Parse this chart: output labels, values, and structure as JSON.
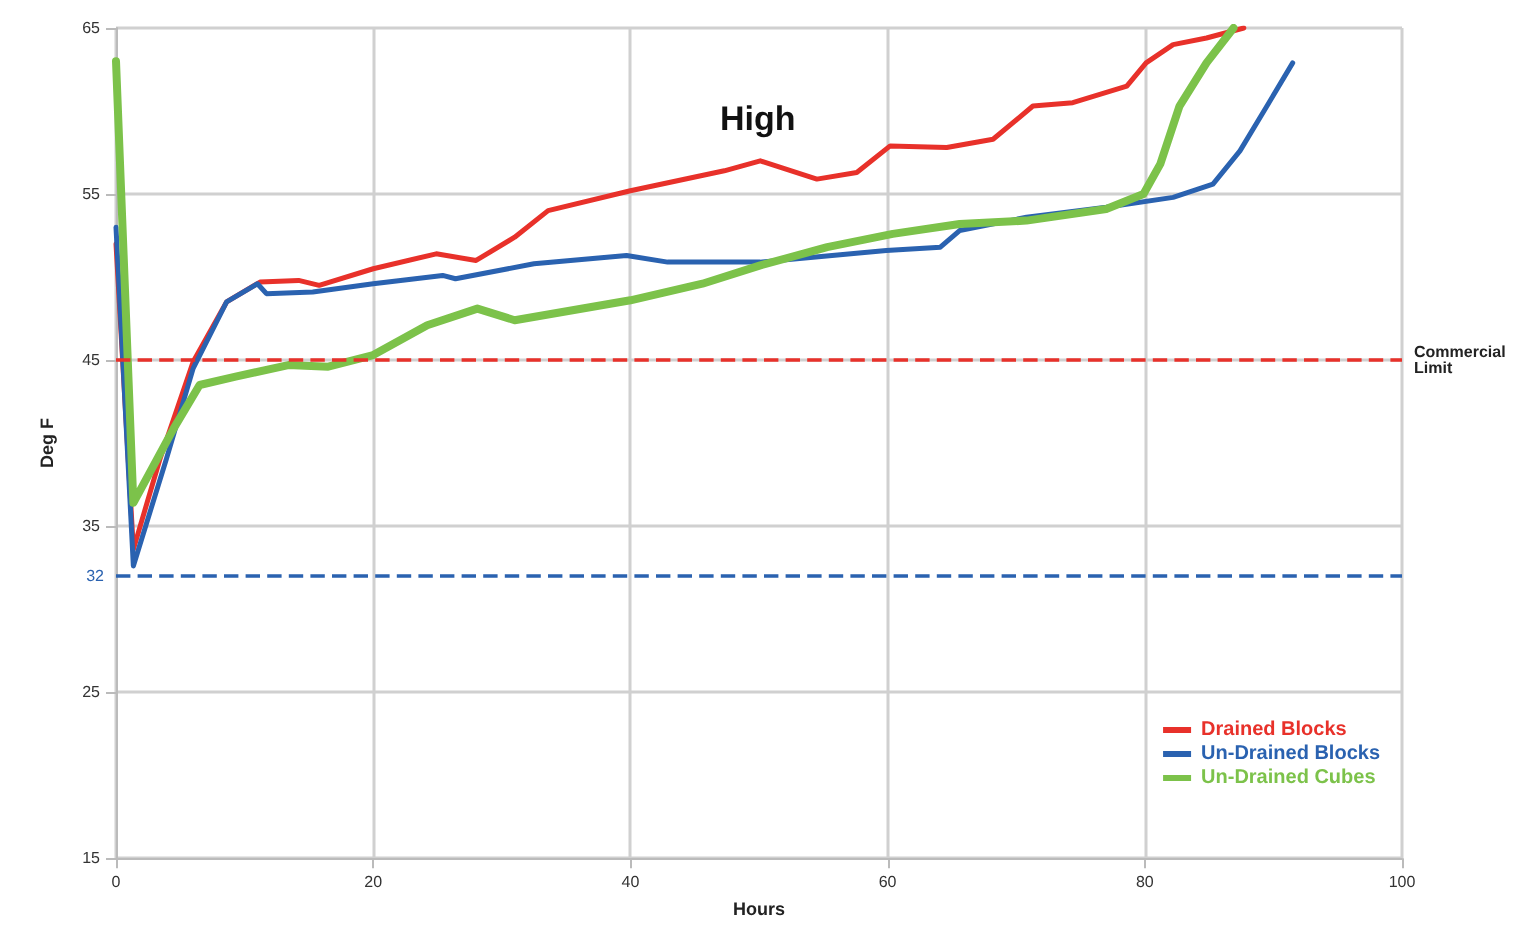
{
  "chart_data": {
    "type": "line",
    "title": "High",
    "xlabel": "Hours",
    "ylabel": "Deg F",
    "xlim": [
      0,
      100
    ],
    "xticks": [
      0,
      20,
      40,
      60,
      80,
      100
    ],
    "ylim": [
      15,
      65
    ],
    "yticks": [
      15,
      25,
      35,
      45,
      55,
      65
    ],
    "grid": true,
    "legend": "bottom right",
    "marker": "none",
    "line_style": "solid",
    "series": [
      {
        "name": "Drained Blocks",
        "color": "#e8312a",
        "x": [
          0,
          1.35,
          3.4,
          6,
          8.6,
          11.2,
          14.2,
          15.8,
          20,
          24.9,
          28,
          31,
          33.6,
          40,
          47.3,
          50.1,
          54.5,
          57.6,
          60.2,
          64.6,
          68.2,
          71.3,
          74.4,
          78.6,
          80.1,
          82.2,
          84.8,
          87.7
        ],
        "values": [
          52,
          33.6,
          39,
          44.9,
          48.5,
          49.7,
          49.8,
          49.5,
          50.5,
          51.4,
          51,
          52.4,
          54,
          55.2,
          56.4,
          57,
          55.9,
          56.3,
          57.9,
          57.8,
          58.3,
          60.3,
          60.5,
          61.5,
          62.9,
          64,
          64.4,
          65
        ]
      },
      {
        "name": "Un-Drained Blocks",
        "color": "#2a62b0",
        "x": [
          0,
          1.35,
          3.9,
          6,
          8.6,
          11,
          11.7,
          15.3,
          20,
          25.4,
          26.4,
          32.5,
          39.7,
          42.9,
          50.1,
          59.9,
          64.1,
          65.6,
          70.8,
          77,
          82.2,
          85.3,
          87.4,
          89.5,
          91.5
        ],
        "values": [
          53,
          32.6,
          39,
          44.5,
          48.5,
          49.6,
          49,
          49.1,
          49.6,
          50.1,
          49.9,
          50.8,
          51.3,
          50.9,
          50.9,
          51.6,
          51.8,
          52.8,
          53.6,
          54.2,
          54.8,
          55.6,
          57.6,
          60.3,
          62.9
        ]
      },
      {
        "name": "Un-Drained Cubes",
        "color": "#7cc24a",
        "x": [
          0,
          1.35,
          4.5,
          6.5,
          9.3,
          13.4,
          16.5,
          20,
          24.2,
          28.1,
          31,
          40,
          45.6,
          50.1,
          55.3,
          60.4,
          65.6,
          70.8,
          77,
          79.9,
          81.2,
          82.7,
          84.8,
          86.9
        ],
        "values": [
          63,
          36.4,
          40.9,
          43.5,
          44,
          44.7,
          44.6,
          45.3,
          47.1,
          48.1,
          47.4,
          48.6,
          49.6,
          50.7,
          51.8,
          52.6,
          53.2,
          53.4,
          54.1,
          55,
          56.8,
          60.3,
          62.9,
          65
        ]
      }
    ],
    "ref_lines": [
      {
        "axis": "y",
        "value": 45,
        "label": "Commercial Limit",
        "color": "#e8312a",
        "line_style": "dashed"
      },
      {
        "axis": "y",
        "value": 32,
        "label": "32",
        "color": "#2a62b0",
        "line_style": "dashed"
      }
    ]
  }
}
